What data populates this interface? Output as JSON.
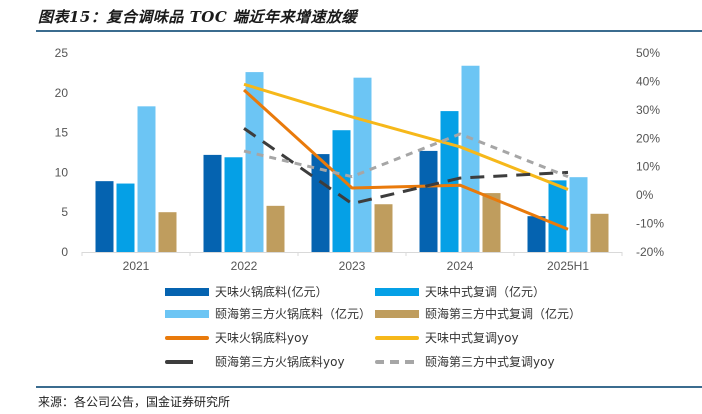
{
  "header": {
    "title": "图表15：复合调味品 TOC 端近年来增速放缓"
  },
  "footer": {
    "source": "来源：各公司公告，国金证券研究所"
  },
  "chart_data": {
    "type": "bar",
    "title": "图表15：复合调味品 TOC 端近年来增速放缓",
    "xlabel": "",
    "ylabel": "",
    "categories": [
      "2021",
      "2022",
      "2023",
      "2024",
      "2025H1"
    ],
    "left_axis": {
      "ylim": [
        0,
        25
      ],
      "ticks": [
        "0",
        "5",
        "10",
        "15",
        "20",
        "25"
      ],
      "tick_values": [
        0,
        5,
        10,
        15,
        20,
        25
      ]
    },
    "right_axis": {
      "ylim": [
        -20,
        50
      ],
      "ticks": [
        "-20%",
        "-10%",
        "0%",
        "10%",
        "20%",
        "30%",
        "40%",
        "50%"
      ],
      "tick_values": [
        -20,
        -10,
        0,
        10,
        20,
        30,
        40,
        50
      ]
    },
    "grid": false,
    "legend_position": "bottom",
    "series": [
      {
        "name": "天味火锅底料(亿元）",
        "type": "bar",
        "axis": "left",
        "color": "#0563b0",
        "values": [
          8.9,
          12.2,
          12.3,
          12.7,
          4.5
        ]
      },
      {
        "name": "天味中式复调（亿元）",
        "type": "bar",
        "axis": "left",
        "color": "#05a0e6",
        "values": [
          8.6,
          11.9,
          15.3,
          17.7,
          9.0
        ]
      },
      {
        "name": "颐海第三方火锅底料（亿元）",
        "type": "bar",
        "axis": "left",
        "color": "#6cc5f4",
        "values": [
          18.3,
          22.6,
          21.9,
          23.4,
          9.4
        ]
      },
      {
        "name": "颐海第三方中式复调（亿元）",
        "type": "bar",
        "axis": "left",
        "color": "#bf9d5e",
        "values": [
          5.0,
          5.8,
          6.0,
          7.4,
          4.8
        ]
      },
      {
        "name": "天味火锅底料yoy",
        "type": "line",
        "axis": "right",
        "color": "#e97a0b",
        "dash": "solid",
        "values": [
          null,
          37,
          2.5,
          3.5,
          -12
        ]
      },
      {
        "name": "天味中式复调yoy",
        "type": "line",
        "axis": "right",
        "color": "#f6b81a",
        "dash": "solid",
        "values": [
          null,
          39,
          27.5,
          17,
          2
        ]
      },
      {
        "name": "颐海第三方火锅底料yoy",
        "type": "line",
        "axis": "right",
        "color": "#3d3d3d",
        "dash": "long-dash",
        "values": [
          null,
          23.5,
          -3,
          6,
          8
        ]
      },
      {
        "name": "颐海第三方中式复调yoy",
        "type": "line",
        "axis": "right",
        "color": "#a6a6a6",
        "dash": "short-dash",
        "values": [
          null,
          15.5,
          6.5,
          21.5,
          6.5
        ]
      }
    ]
  }
}
